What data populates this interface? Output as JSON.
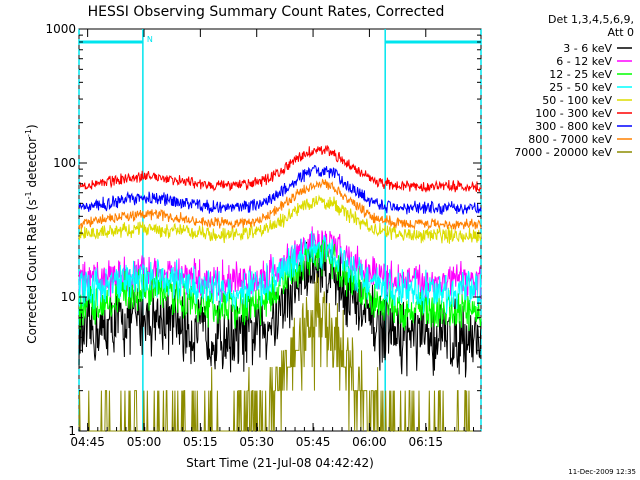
{
  "chart_data": {
    "type": "line",
    "title": "HESSI Observing Summary Count Rates, Corrected",
    "xlabel": "Start Time (21-Jul-08 04:42:42)",
    "ylabel_main": "Corrected Count Rate (s",
    "ylabel_sup1": "-1",
    "ylabel_mid": " detector",
    "ylabel_sup2": "-1",
    "ylabel_end": ")",
    "yscale": "log",
    "ylim": [
      1,
      1000
    ],
    "xlim_minutes_after_0442": [
      0,
      107
    ],
    "x_ticks": [
      {
        "label": "04:45",
        "min": 2.3
      },
      {
        "label": "05:00",
        "min": 17.3
      },
      {
        "label": "05:15",
        "min": 32.3
      },
      {
        "label": "05:30",
        "min": 47.3
      },
      {
        "label": "05:45",
        "min": 62.3
      },
      {
        "label": "06:00",
        "min": 77.3
      },
      {
        "label": "06:15",
        "min": 92.3
      }
    ],
    "y_ticks": [
      {
        "label": "1",
        "value": 1
      },
      {
        "label": "10",
        "value": 10
      },
      {
        "label": "100",
        "value": 100
      },
      {
        "label": "1000",
        "value": 1000
      }
    ],
    "legend_header": [
      "Det 1,3,4,5,6,9,",
      "Att 0"
    ],
    "legend_position": "right",
    "night_intervals": [
      [
        0,
        17
      ],
      [
        81.5,
        107
      ]
    ],
    "saa_marker": {
      "label": "N",
      "start_min": 17
    },
    "series": [
      {
        "name": "3 - 6 keV",
        "color": "#000000",
        "base": 5.0,
        "hump1": 0.3,
        "peak": 17.0,
        "noise": 0.35,
        "amp": 0.33
      },
      {
        "name": "6 - 12 keV",
        "color": "#ff00ff",
        "base": 13.0,
        "hump1": 0.2,
        "peak": 25.0,
        "noise": 0.05,
        "amp": 0.17
      },
      {
        "name": "12 - 25 keV",
        "color": "#00ff00",
        "base": 8.0,
        "hump1": 0.4,
        "peak": 20.0,
        "noise": 0.06,
        "amp": 0.18
      },
      {
        "name": "25 - 50 keV",
        "color": "#00ffff",
        "base": 11.0,
        "hump1": 0.35,
        "peak": 23.0,
        "noise": 0.05,
        "amp": 0.17
      },
      {
        "name": "50 - 100 keV",
        "color": "#dcdc00",
        "base": 29.0,
        "hump1": 0.2,
        "peak": 52.0,
        "noise": 0.03,
        "amp": 0.07
      },
      {
        "name": "100 - 300 keV",
        "color": "#ff0000",
        "base": 67.0,
        "hump1": 0.27,
        "peak": 125.0,
        "noise": 0.02,
        "amp": 0.05
      },
      {
        "name": "300 - 800 keV",
        "color": "#0000ff",
        "base": 46.0,
        "hump1": 0.27,
        "peak": 88.0,
        "noise": 0.02,
        "amp": 0.06
      },
      {
        "name": "800 - 7000 keV",
        "color": "#ff8000",
        "base": 35.0,
        "hump1": 0.25,
        "peak": 70.0,
        "noise": 0.02,
        "amp": 0.05
      },
      {
        "name": "7000 - 20000 keV",
        "color": "#8c8c00",
        "base": 1.0,
        "hump1": 0.0,
        "peak": 7.0,
        "noise": 0.6,
        "amp": 0.3
      }
    ]
  },
  "footer": {
    "timestamp": "11-Dec-2009 12:35"
  }
}
